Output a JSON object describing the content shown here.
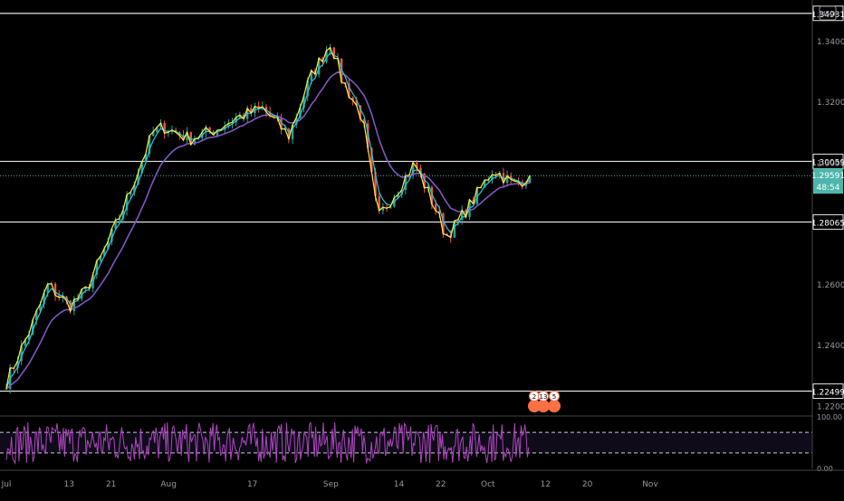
{
  "chart_data": {
    "type": "line",
    "currency": "USD",
    "series": [
      {
        "name": "",
        "role": "price",
        "color": "#ffeb3b",
        "x": [
          "2020-07-01",
          "2020-07-06",
          "2020-07-09",
          "2020-07-13",
          "2020-07-16",
          "2020-07-21",
          "2020-07-24",
          "2020-07-29",
          "2020-07-31",
          "2020-08-05",
          "2020-08-10",
          "2020-08-14",
          "2020-08-19",
          "2020-08-24",
          "2020-08-28",
          "2020-09-01",
          "2020-09-03",
          "2020-09-07",
          "2020-09-10",
          "2020-09-14",
          "2020-09-17",
          "2020-09-21",
          "2020-09-23",
          "2020-09-25",
          "2020-09-29",
          "2020-10-02",
          "2020-10-06",
          "2020-10-09"
        ],
        "values": [
          1.228,
          1.247,
          1.26,
          1.253,
          1.2575,
          1.276,
          1.288,
          1.31,
          1.312,
          1.308,
          1.311,
          1.315,
          1.318,
          1.309,
          1.328,
          1.34,
          1.328,
          1.315,
          1.282,
          1.292,
          1.3,
          1.285,
          1.276,
          1.28,
          1.29,
          1.298,
          1.293,
          1.2959
        ]
      },
      {
        "name": "",
        "role": "fast-ma",
        "color": "#26c6da"
      },
      {
        "name": "",
        "role": "slow-ma",
        "color": "#7e57c2"
      }
    ],
    "x_ticks": [
      "Jul",
      "13",
      "21",
      "Aug",
      "17",
      "Sep",
      "14",
      "22",
      "Oct",
      "12",
      "20",
      "Nov"
    ],
    "y_ticks": [
      1.34,
      1.32,
      1.3,
      1.26,
      1.24,
      1.22
    ],
    "ylim": [
      1.2174,
      1.3537
    ],
    "horizontal_levels": [
      "1.34931",
      "1.30059",
      "1.28065",
      "1.22499"
    ],
    "current_price": {
      "value": "1.29591",
      "countdown": "48:54",
      "color": "#4db6ac"
    },
    "grid": false,
    "events": [
      "2",
      "13",
      "5"
    ],
    "oscillator": {
      "type": "line",
      "color": "#ab47bc",
      "y_ticks": [
        100.0,
        0.0
      ],
      "levels": [
        70,
        30
      ],
      "ylim": [
        0,
        100
      ]
    }
  }
}
